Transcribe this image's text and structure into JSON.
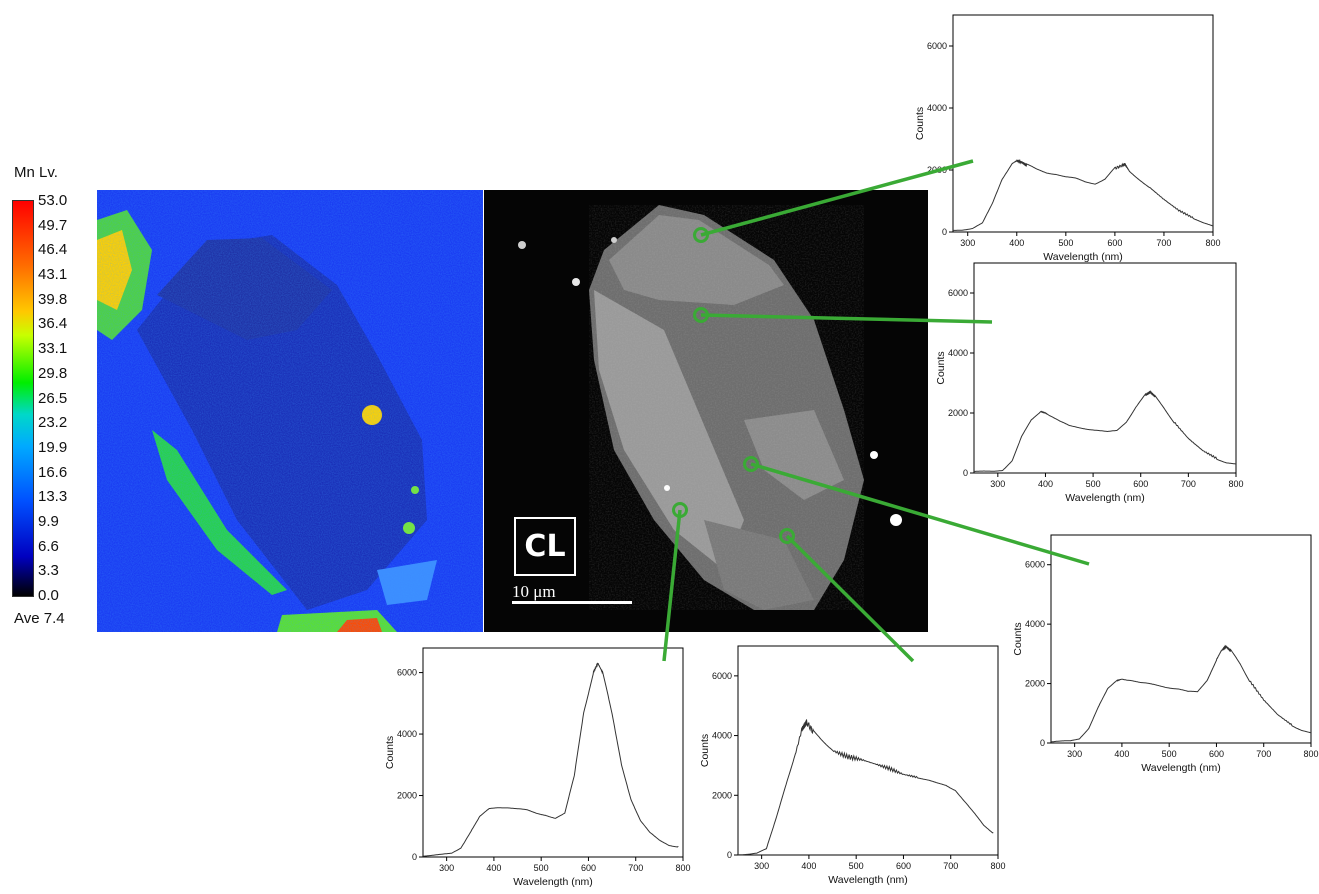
{
  "colorbar": {
    "title": "Mn  Lv.",
    "ticks": [
      "53.0",
      "49.7",
      "46.4",
      "43.1",
      "39.8",
      "36.4",
      "33.1",
      "29.8",
      "26.5",
      "23.2",
      "19.9",
      "16.6",
      "13.3",
      "9.9",
      "6.6",
      "3.3",
      "0.0"
    ],
    "average": "Ave 7.4"
  },
  "cl_label": "CL",
  "scalebar_label": "10 μm",
  "colors": {
    "marker": "#3aaa35",
    "curve": "#333333",
    "axis": "#000000"
  },
  "chart_data": [
    {
      "type": "line",
      "position": "top",
      "xlabel": "Wavelength (nm)",
      "ylabel": "Counts",
      "xlim": [
        270,
        800
      ],
      "ylim": [
        0,
        7000
      ],
      "xticks": [
        300,
        400,
        500,
        600,
        700,
        800
      ],
      "yticks": [
        0,
        2000,
        4000,
        6000
      ],
      "series": [
        {
          "x": [
            270,
            290,
            310,
            330,
            350,
            370,
            390,
            400,
            410,
            420,
            440,
            460,
            480,
            500,
            520,
            540,
            560,
            580,
            600,
            615,
            620,
            630,
            650,
            670,
            700,
            730,
            760,
            780,
            800
          ],
          "y": [
            60,
            80,
            120,
            280,
            900,
            1700,
            2200,
            2300,
            2250,
            2150,
            2000,
            1900,
            1850,
            1750,
            1700,
            1600,
            1550,
            1700,
            2050,
            2150,
            2200,
            1950,
            1700,
            1450,
            1050,
            700,
            450,
            300,
            200
          ]
        }
      ]
    },
    {
      "type": "line",
      "position": "middle-right",
      "xlabel": "Wavelength (nm)",
      "ylabel": "Counts",
      "xlim": [
        250,
        800
      ],
      "ylim": [
        0,
        7000
      ],
      "xticks": [
        300,
        400,
        500,
        600,
        700,
        800
      ],
      "yticks": [
        0,
        2000,
        4000,
        6000
      ],
      "series": [
        {
          "x": [
            250,
            270,
            290,
            310,
            330,
            350,
            370,
            390,
            400,
            410,
            430,
            450,
            470,
            490,
            510,
            530,
            550,
            570,
            590,
            610,
            620,
            630,
            650,
            670,
            700,
            730,
            760,
            780,
            800
          ],
          "y": [
            50,
            60,
            70,
            100,
            400,
            1200,
            1750,
            2050,
            2000,
            1900,
            1700,
            1550,
            1500,
            1450,
            1400,
            1350,
            1400,
            1700,
            2200,
            2600,
            2700,
            2550,
            2150,
            1700,
            1150,
            750,
            480,
            350,
            300
          ]
        }
      ]
    },
    {
      "type": "line",
      "position": "lower-right",
      "xlabel": "Wavelength (nm)",
      "ylabel": "Counts",
      "xlim": [
        250,
        800
      ],
      "ylim": [
        0,
        7000
      ],
      "xticks": [
        300,
        400,
        500,
        600,
        700,
        800
      ],
      "yticks": [
        0,
        2000,
        4000,
        6000
      ],
      "series": [
        {
          "x": [
            250,
            270,
            290,
            310,
            330,
            350,
            370,
            390,
            400,
            420,
            440,
            460,
            480,
            500,
            520,
            540,
            560,
            580,
            600,
            610,
            620,
            630,
            650,
            670,
            700,
            730,
            760,
            780,
            800
          ],
          "y": [
            50,
            60,
            70,
            150,
            500,
            1200,
            1800,
            2100,
            2150,
            2100,
            2000,
            1950,
            1900,
            1850,
            1800,
            1700,
            1700,
            2100,
            2800,
            3100,
            3250,
            3100,
            2650,
            2100,
            1450,
            950,
            600,
            450,
            350
          ]
        }
      ]
    },
    {
      "type": "line",
      "position": "bottom-left",
      "xlabel": "Wavelength (nm)",
      "ylabel": "Counts",
      "xlim": [
        250,
        800
      ],
      "ylim": [
        0,
        6800
      ],
      "xticks": [
        300,
        400,
        500,
        600,
        700,
        800
      ],
      "yticks": [
        0,
        2000,
        4000,
        6000
      ],
      "series": [
        {
          "x": [
            250,
            270,
            290,
            310,
            330,
            350,
            370,
            390,
            410,
            430,
            450,
            470,
            490,
            510,
            530,
            550,
            570,
            590,
            610,
            620,
            630,
            650,
            670,
            690,
            710,
            730,
            750,
            770,
            790
          ],
          "y": [
            50,
            60,
            80,
            120,
            300,
            800,
            1300,
            1550,
            1600,
            1600,
            1550,
            1500,
            1400,
            1350,
            1250,
            1400,
            2600,
            4700,
            6000,
            6300,
            6000,
            4600,
            3000,
            1900,
            1200,
            800,
            550,
            400,
            350
          ]
        }
      ]
    },
    {
      "type": "line",
      "position": "bottom-middle",
      "xlabel": "Wavelength (nm)",
      "ylabel": "Counts",
      "xlim": [
        250,
        800
      ],
      "ylim": [
        0,
        7000
      ],
      "xticks": [
        300,
        400,
        500,
        600,
        700,
        800
      ],
      "yticks": [
        0,
        2000,
        4000,
        6000
      ],
      "series": [
        {
          "x": [
            250,
            270,
            290,
            310,
            330,
            350,
            370,
            385,
            395,
            410,
            430,
            450,
            480,
            510,
            540,
            570,
            600,
            630,
            650,
            670,
            690,
            710,
            730,
            750,
            770,
            790
          ],
          "y": [
            30,
            40,
            60,
            200,
            1200,
            2300,
            3300,
            4200,
            4450,
            4100,
            3800,
            3500,
            3300,
            3200,
            3050,
            2900,
            2700,
            2600,
            2500,
            2400,
            2350,
            2200,
            1800,
            1400,
            1000,
            750
          ]
        }
      ]
    }
  ]
}
